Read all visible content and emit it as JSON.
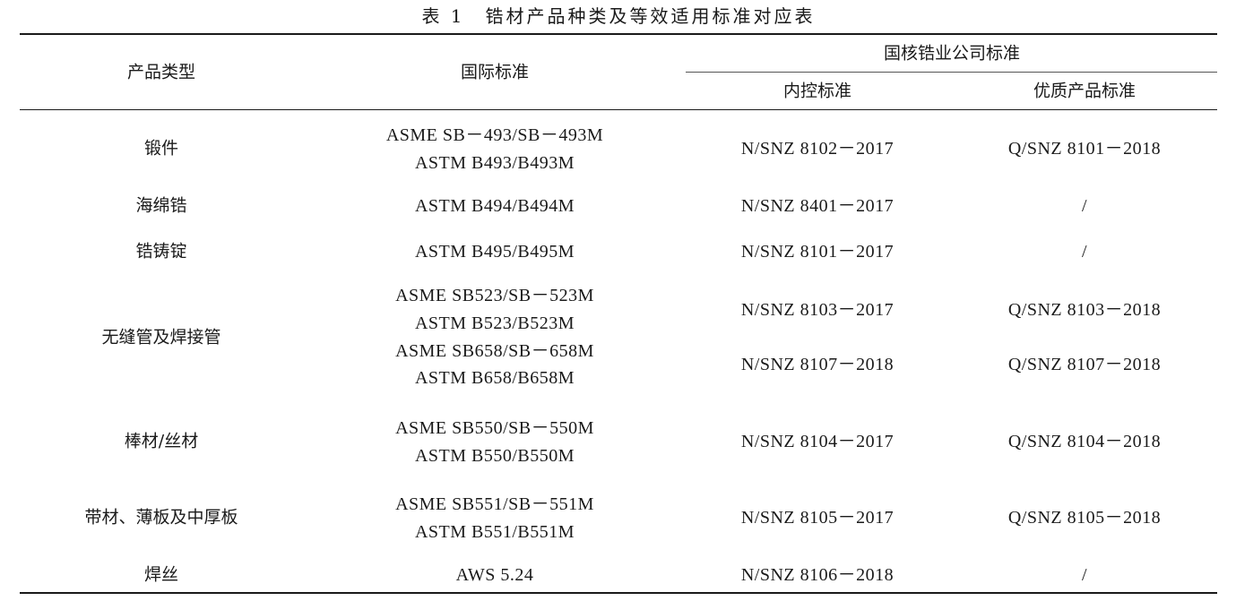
{
  "title": "表 1　锆材产品种类及等效适用标准对应表",
  "headers": {
    "product_type": "产品类型",
    "international": "国际标准",
    "company_group": "国核锆业公司标准",
    "internal": "内控标准",
    "quality": "优质产品标准"
  },
  "rows": [
    {
      "product": "锻件",
      "intl": [
        "ASME SB－493/SB－493M",
        "ASTM B493/B493M"
      ],
      "internal": [
        "N/SNZ 8102－2017"
      ],
      "quality": [
        "Q/SNZ 8101－2018"
      ]
    },
    {
      "product": "海绵锆",
      "intl": [
        "ASTM B494/B494M"
      ],
      "internal": [
        "N/SNZ 8401－2017"
      ],
      "quality": [
        "/"
      ]
    },
    {
      "product": "锆铸锭",
      "intl": [
        "ASTM B495/B495M"
      ],
      "internal": [
        "N/SNZ 8101－2017"
      ],
      "quality": [
        "/"
      ]
    },
    {
      "product": "无缝管及焊接管",
      "intl": [
        "ASME SB523/SB－523M",
        "ASTM B523/B523M",
        "ASME SB658/SB－658M",
        "ASTM B658/B658M"
      ],
      "internal": [
        "N/SNZ 8103－2017",
        "N/SNZ 8107－2018"
      ],
      "quality": [
        "Q/SNZ 8103－2018",
        "Q/SNZ 8107－2018"
      ]
    },
    {
      "product": "棒材/丝材",
      "intl": [
        "ASME SB550/SB－550M",
        "ASTM B550/B550M"
      ],
      "internal": [
        "N/SNZ 8104－2017"
      ],
      "quality": [
        "Q/SNZ 8104－2018"
      ]
    },
    {
      "product": "带材、薄板及中厚板",
      "intl": [
        "ASME SB551/SB－551M",
        "ASTM B551/B551M"
      ],
      "internal": [
        "N/SNZ 8105－2017"
      ],
      "quality": [
        "Q/SNZ 8105－2018"
      ]
    },
    {
      "product": "焊丝",
      "intl": [
        "AWS 5.24"
      ],
      "internal": [
        "N/SNZ 8106－2018"
      ],
      "quality": [
        "/"
      ]
    }
  ]
}
